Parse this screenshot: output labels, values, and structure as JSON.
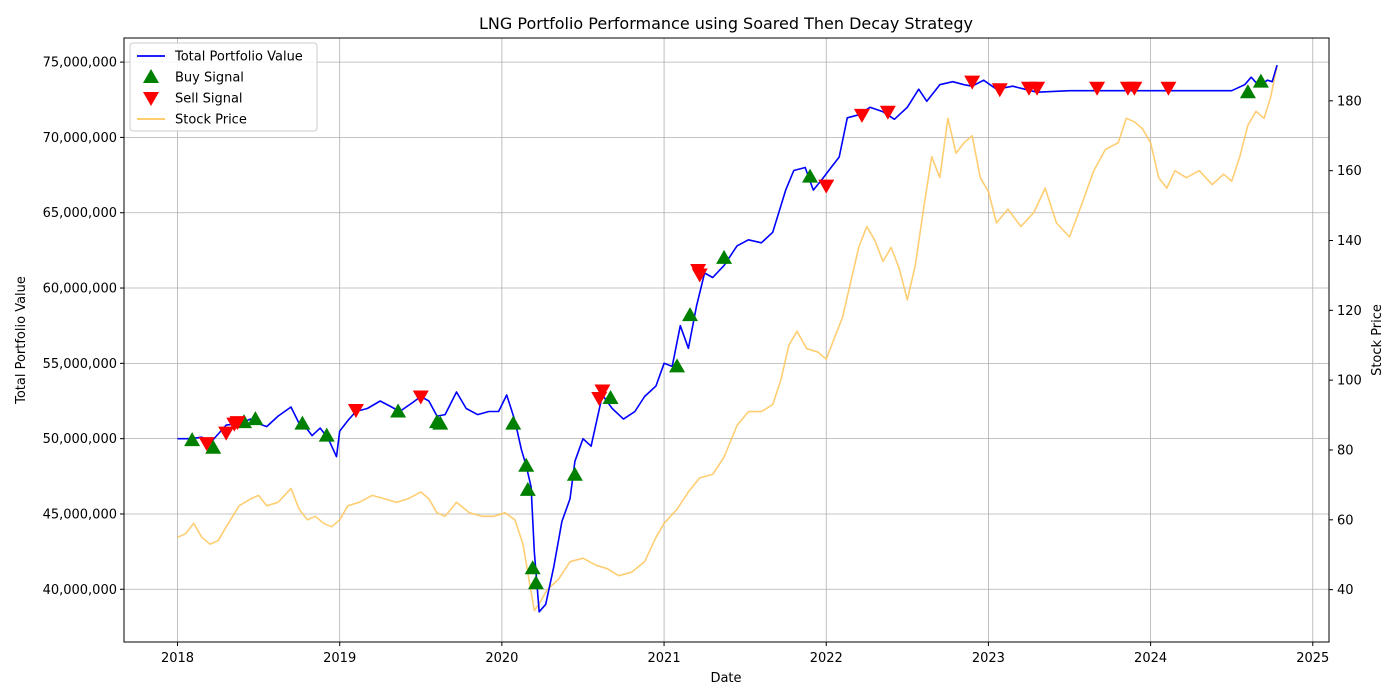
{
  "chart_data": {
    "type": "line",
    "title": "LNG Portfolio Performance using Soared Then Decay Strategy",
    "xlabel": "Date",
    "ylabel_left": "Total Portfolio Value",
    "ylabel_right": "Stock Price",
    "x_ticks": [
      "2018",
      "2019",
      "2020",
      "2021",
      "2022",
      "2023",
      "2024",
      "2025"
    ],
    "y_left_ticks": [
      "40,000,000",
      "45,000,000",
      "50,000,000",
      "55,000,000",
      "60,000,000",
      "65,000,000",
      "70,000,000",
      "75,000,000"
    ],
    "y_right_ticks": [
      "40",
      "60",
      "80",
      "100",
      "120",
      "140",
      "160",
      "180"
    ],
    "xlim": [
      2017.67,
      2025.1
    ],
    "ylim_left": [
      36500000,
      76600000
    ],
    "ylim_right": [
      25,
      198
    ],
    "grid": true,
    "legend_position": "top-left",
    "legend": [
      {
        "label": "Total Portfolio Value",
        "kind": "line",
        "color": "#0000ff"
      },
      {
        "label": "Buy Signal",
        "kind": "triangle-up",
        "color": "#008000"
      },
      {
        "label": "Sell Signal",
        "kind": "triangle-down",
        "color": "#ff0000"
      },
      {
        "label": "Stock Price",
        "kind": "line",
        "color": "#ffc55b"
      }
    ],
    "portfolio_series": {
      "name": "Total Portfolio Value",
      "axis": "left",
      "color": "#0000ff",
      "x": [
        2018.0,
        2018.08,
        2018.15,
        2018.2,
        2018.25,
        2018.3,
        2018.38,
        2018.45,
        2018.5,
        2018.55,
        2018.62,
        2018.7,
        2018.75,
        2018.78,
        2018.83,
        2018.88,
        2018.93,
        2018.98,
        2019.0,
        2019.05,
        2019.1,
        2019.17,
        2019.25,
        2019.32,
        2019.37,
        2019.45,
        2019.5,
        2019.55,
        2019.6,
        2019.65,
        2019.72,
        2019.78,
        2019.85,
        2019.92,
        2019.98,
        2020.03,
        2020.08,
        2020.12,
        2020.15,
        2020.18,
        2020.2,
        2020.23,
        2020.27,
        2020.32,
        2020.37,
        2020.42,
        2020.45,
        2020.5,
        2020.55,
        2020.62,
        2020.68,
        2020.75,
        2020.82,
        2020.88,
        2020.95,
        2021.0,
        2021.05,
        2021.1,
        2021.15,
        2021.2,
        2021.25,
        2021.3,
        2021.37,
        2021.45,
        2021.52,
        2021.6,
        2021.67,
        2021.75,
        2021.8,
        2021.87,
        2021.92,
        2021.98,
        2022.03,
        2022.08,
        2022.13,
        2022.2,
        2022.27,
        2022.35,
        2022.42,
        2022.5,
        2022.57,
        2022.62,
        2022.7,
        2022.78,
        2022.85,
        2022.9,
        2022.97,
        2023.05,
        2023.15,
        2023.3,
        2023.5,
        2023.7,
        2023.9,
        2024.1,
        2024.3,
        2024.5,
        2024.58,
        2024.62,
        2024.67,
        2024.72,
        2024.75,
        2024.78
      ],
      "y": [
        50000000,
        50000000,
        50100000,
        49700000,
        50300000,
        50900000,
        51000000,
        51300000,
        51000000,
        50800000,
        51500000,
        52100000,
        51000000,
        50900000,
        50200000,
        50700000,
        50000000,
        48800000,
        50500000,
        51200000,
        51800000,
        52000000,
        52500000,
        52100000,
        51800000,
        52400000,
        52800000,
        52500000,
        51500000,
        51600000,
        53100000,
        52000000,
        51600000,
        51800000,
        51800000,
        52900000,
        51200000,
        49300000,
        48200000,
        46800000,
        42500000,
        38500000,
        39000000,
        41500000,
        44500000,
        46000000,
        48500000,
        50000000,
        49500000,
        52900000,
        52000000,
        51300000,
        51800000,
        52800000,
        53500000,
        55000000,
        54800000,
        57500000,
        56000000,
        58800000,
        61000000,
        60700000,
        61500000,
        62800000,
        63200000,
        63000000,
        63700000,
        66500000,
        67800000,
        68000000,
        66500000,
        67300000,
        68000000,
        68700000,
        71300000,
        71500000,
        72000000,
        71700000,
        71200000,
        72000000,
        73200000,
        72400000,
        73500000,
        73700000,
        73500000,
        73400000,
        73800000,
        73200000,
        73400000,
        73000000,
        73100000,
        73100000,
        73100000,
        73100000,
        73100000,
        73100000,
        73500000,
        74000000,
        73400000,
        73800000,
        73700000,
        74800000
      ]
    },
    "price_series": {
      "name": "Stock Price",
      "axis": "right",
      "color": "#ffc55b",
      "x": [
        2018.0,
        2018.05,
        2018.1,
        2018.15,
        2018.2,
        2018.25,
        2018.3,
        2018.38,
        2018.45,
        2018.5,
        2018.55,
        2018.62,
        2018.7,
        2018.75,
        2018.8,
        2018.85,
        2018.9,
        2018.95,
        2019.0,
        2019.05,
        2019.12,
        2019.2,
        2019.28,
        2019.35,
        2019.42,
        2019.5,
        2019.55,
        2019.6,
        2019.65,
        2019.72,
        2019.8,
        2019.88,
        2019.95,
        2020.02,
        2020.08,
        2020.13,
        2020.17,
        2020.2,
        2020.23,
        2020.28,
        2020.35,
        2020.42,
        2020.5,
        2020.58,
        2020.65,
        2020.72,
        2020.8,
        2020.88,
        2020.95,
        2021.0,
        2021.08,
        2021.15,
        2021.22,
        2021.3,
        2021.37,
        2021.45,
        2021.52,
        2021.6,
        2021.67,
        2021.72,
        2021.77,
        2021.82,
        2021.88,
        2021.95,
        2022.0,
        2022.05,
        2022.1,
        2022.15,
        2022.2,
        2022.25,
        2022.3,
        2022.35,
        2022.4,
        2022.45,
        2022.5,
        2022.55,
        2022.6,
        2022.65,
        2022.7,
        2022.75,
        2022.8,
        2022.85,
        2022.9,
        2022.95,
        2023.0,
        2023.05,
        2023.12,
        2023.2,
        2023.28,
        2023.35,
        2023.42,
        2023.5,
        2023.58,
        2023.65,
        2023.72,
        2023.8,
        2023.85,
        2023.9,
        2023.95,
        2024.0,
        2024.05,
        2024.1,
        2024.15,
        2024.22,
        2024.3,
        2024.38,
        2024.45,
        2024.5,
        2024.55,
        2024.6,
        2024.65,
        2024.7,
        2024.74,
        2024.78
      ],
      "y": [
        55,
        56,
        59,
        55,
        53,
        54,
        58,
        64,
        66,
        67,
        64,
        65,
        69,
        63,
        60,
        61,
        59,
        58,
        60,
        64,
        65,
        67,
        66,
        65,
        66,
        68,
        66,
        62,
        61,
        65,
        62,
        61,
        61,
        62,
        60,
        53,
        42,
        34,
        36,
        40,
        43,
        48,
        49,
        47,
        46,
        44,
        45,
        48,
        55,
        59,
        63,
        68,
        72,
        73,
        78,
        87,
        91,
        91,
        93,
        100,
        110,
        114,
        109,
        108,
        106,
        112,
        118,
        128,
        138,
        144,
        140,
        134,
        138,
        132,
        123,
        133,
        149,
        164,
        158,
        175,
        165,
        168,
        170,
        158,
        154,
        145,
        149,
        144,
        148,
        155,
        145,
        141,
        151,
        160,
        166,
        168,
        175,
        174,
        172,
        168,
        158,
        155,
        160,
        158,
        160,
        156,
        159,
        157,
        164,
        173,
        177,
        175,
        181,
        190
      ]
    },
    "buy_signals": {
      "name": "Buy Signal",
      "x": [
        2018.09,
        2018.22,
        2018.41,
        2018.48,
        2018.77,
        2018.92,
        2019.36,
        2019.6,
        2019.62,
        2020.07,
        2020.15,
        2020.16,
        2020.19,
        2020.21,
        2020.45,
        2020.67,
        2021.08,
        2021.16,
        2021.37,
        2021.9,
        2024.6,
        2024.68
      ],
      "y": [
        49900000,
        49400000,
        51100000,
        51300000,
        51000000,
        50200000,
        51800000,
        51100000,
        51000000,
        51000000,
        48200000,
        46600000,
        41400000,
        40400000,
        47600000,
        52700000,
        54800000,
        58200000,
        62000000,
        67400000,
        73000000,
        73700000
      ]
    },
    "sell_signals": {
      "name": "Sell Signal",
      "x": [
        2018.18,
        2018.3,
        2018.35,
        2018.37,
        2019.1,
        2019.5,
        2020.6,
        2020.62,
        2021.21,
        2021.22,
        2022.0,
        2022.22,
        2022.38,
        2022.9,
        2023.07,
        2023.25,
        2023.3,
        2023.67,
        2023.86,
        2023.9,
        2024.11
      ],
      "y": [
        49700000,
        50400000,
        51000000,
        51100000,
        51900000,
        52800000,
        52700000,
        53200000,
        61200000,
        60900000,
        66800000,
        71500000,
        71700000,
        73700000,
        73200000,
        73300000,
        73300000,
        73300000,
        73300000,
        73300000,
        73300000
      ]
    }
  }
}
